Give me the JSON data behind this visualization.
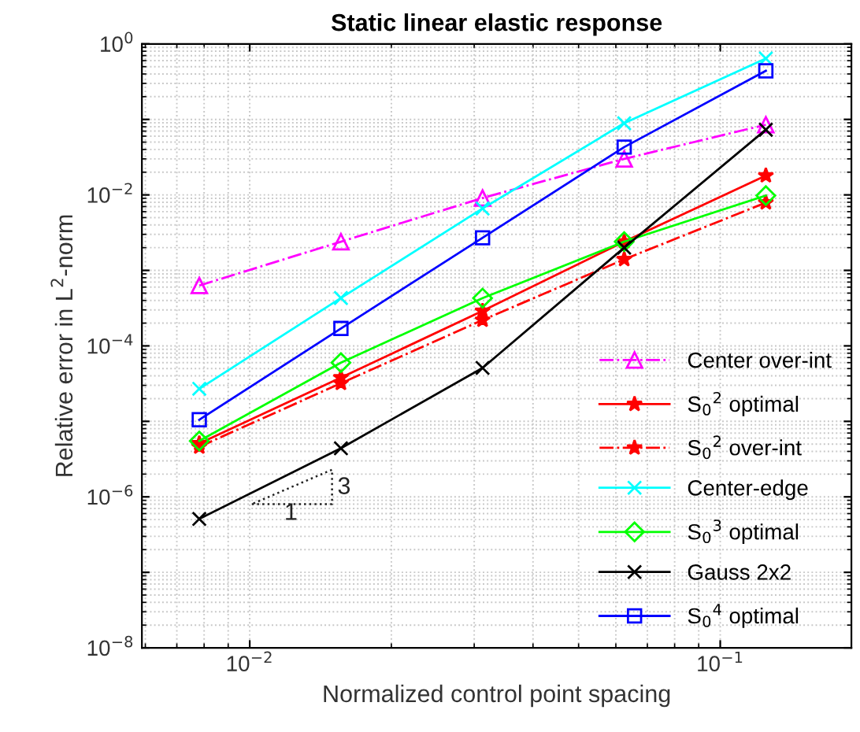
{
  "chart_data": {
    "type": "line",
    "title": "Static linear elastic response",
    "xlabel": "Normalized control point spacing",
    "ylabel": "Relative error in L$^{2}$-norm",
    "log": "xy",
    "grid": true,
    "legend": "bottom right",
    "x": [
      0.0078125,
      0.015625,
      0.03125,
      0.0625,
      0.125
    ],
    "xlim": [
      0.0059,
      0.19
    ],
    "xticks": [
      {
        "value": 0.01,
        "label": "10$^{−2}$"
      },
      {
        "value": 0.1,
        "label": "10$^{−1}$"
      }
    ],
    "ylim": [
      1e-08,
      1
    ],
    "yticks": [
      {
        "value": 1e-08,
        "label": "10$^{−8}$"
      },
      {
        "value": 1e-07,
        "label": null
      },
      {
        "value": 1e-06,
        "label": "10$^{−6}$"
      },
      {
        "value": 1e-05,
        "label": null
      },
      {
        "value": 0.0001,
        "label": "10$^{−4}$"
      },
      {
        "value": 0.001,
        "label": null
      },
      {
        "value": 0.01,
        "label": "10$^{−2}$"
      },
      {
        "value": 0.1,
        "label": null
      },
      {
        "value": 1,
        "label": "10$^{0}$"
      }
    ],
    "series": [
      {
        "name": "Center over-int",
        "color": "#ff00ff",
        "marker": "triangle",
        "line_style": "dashdot",
        "values": [
          0.00063,
          0.0024,
          0.0091,
          0.03,
          0.085
        ]
      },
      {
        "name": "S$_{0}$$^{2}$ optimal",
        "color": "#ff0000",
        "marker": "star",
        "line_style": "solid",
        "values": [
          5.1e-06,
          3.8e-05,
          0.00029,
          0.0024,
          0.018
        ]
      },
      {
        "name": "S$_{0}$$^{2}$ over-int",
        "color": "#ff0000",
        "marker": "star",
        "line_style": "dashdot",
        "values": [
          4.6e-06,
          3.2e-05,
          0.00022,
          0.0014,
          0.0079
        ]
      },
      {
        "name": "Center-edge",
        "color": "#00ffff",
        "marker": "cross",
        "line_style": "solid",
        "values": [
          2.7e-05,
          0.00043,
          0.0066,
          0.089,
          0.64
        ]
      },
      {
        "name": "S$_{0}$$^{3}$ optimal",
        "color": "#00ff00",
        "marker": "diamond",
        "line_style": "solid",
        "values": [
          5.5e-06,
          6e-05,
          0.00043,
          0.0024,
          0.0098
        ]
      },
      {
        "name": "Gauss 2x2",
        "color": "#000000",
        "marker": "cross",
        "line_style": "solid",
        "values": [
          5.1e-07,
          4.4e-06,
          5.1e-05,
          0.002,
          0.073
        ]
      },
      {
        "name": "S$_{0}$$^{4}$ optimal",
        "color": "#0000ff",
        "marker": "square",
        "line_style": "solid",
        "values": [
          1.05e-05,
          0.00017,
          0.0027,
          0.043,
          0.44
        ]
      }
    ],
    "annotations": [
      "3",
      "1"
    ]
  }
}
